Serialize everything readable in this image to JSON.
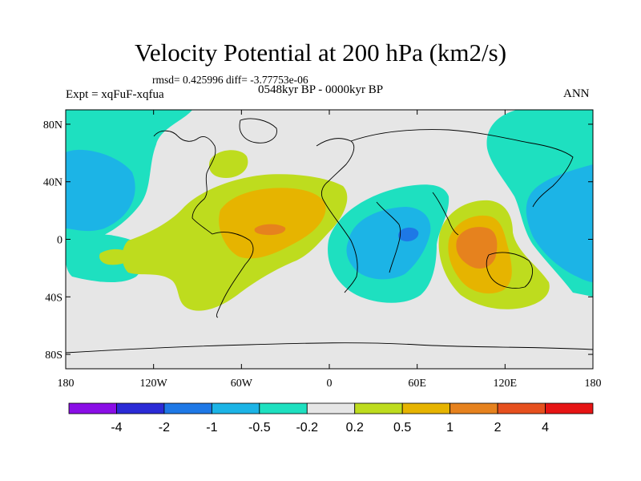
{
  "chart_data": {
    "type": "contour_map",
    "title": "Velocity Potential at 200 hPa (km2/s)",
    "stats": "rmsd= 0.425996 diff= -3.77753e-06",
    "experiment": "Expt = xqFuF-xqfua",
    "period": "0548kyr BP - 0000kyr BP",
    "season": "ANN",
    "lon_ticks": [
      "180",
      "120W",
      "60W",
      "0",
      "60E",
      "120E",
      "180"
    ],
    "lon_values": [
      -180,
      -120,
      -60,
      0,
      60,
      120,
      180
    ],
    "lat_ticks": [
      "80N",
      "40N",
      "0",
      "40S",
      "80S"
    ],
    "lat_values": [
      80,
      40,
      0,
      -40,
      -80
    ],
    "xlim": [
      -180,
      180
    ],
    "ylim": [
      -90,
      90
    ],
    "colorbar_levels": [
      "-4",
      "-2",
      "-1",
      "-0.5",
      "-0.2",
      "0.2",
      "0.5",
      "1",
      "2",
      "4"
    ],
    "colorbar_colors": [
      "#8a0ee6",
      "#2b2bd6",
      "#1e78e6",
      "#1cb4e6",
      "#1ee0c0",
      "#e6e6e6",
      "#bedc1e",
      "#e6b400",
      "#e6821e",
      "#e6501e",
      "#e61414"
    ],
    "regions": [
      {
        "name": "north-pacific-negative",
        "level": "-0.2"
      },
      {
        "name": "north-pacific-core",
        "level": "-0.5"
      },
      {
        "name": "north-atlantic-positive",
        "level": "0.2"
      },
      {
        "name": "atlantic-positive",
        "level": "0.2"
      },
      {
        "name": "atlantic-core",
        "level": "0.5"
      },
      {
        "name": "atlantic-max",
        "level": "1"
      },
      {
        "name": "africa-indian-negative",
        "level": "-0.2"
      },
      {
        "name": "africa-indian-core",
        "level": "-0.5"
      },
      {
        "name": "africa-indian-max",
        "level": "-1"
      },
      {
        "name": "south-pacific-negative",
        "level": "-0.2"
      },
      {
        "name": "south-pacific-positive",
        "level": "0.2"
      },
      {
        "name": "maritime-positive",
        "level": "0.2"
      },
      {
        "name": "maritime-core",
        "level": "0.5"
      },
      {
        "name": "maritime-max",
        "level": "1"
      },
      {
        "name": "west-pacific-negative",
        "level": "-0.2"
      },
      {
        "name": "west-pacific-core",
        "level": "-0.5"
      }
    ]
  }
}
